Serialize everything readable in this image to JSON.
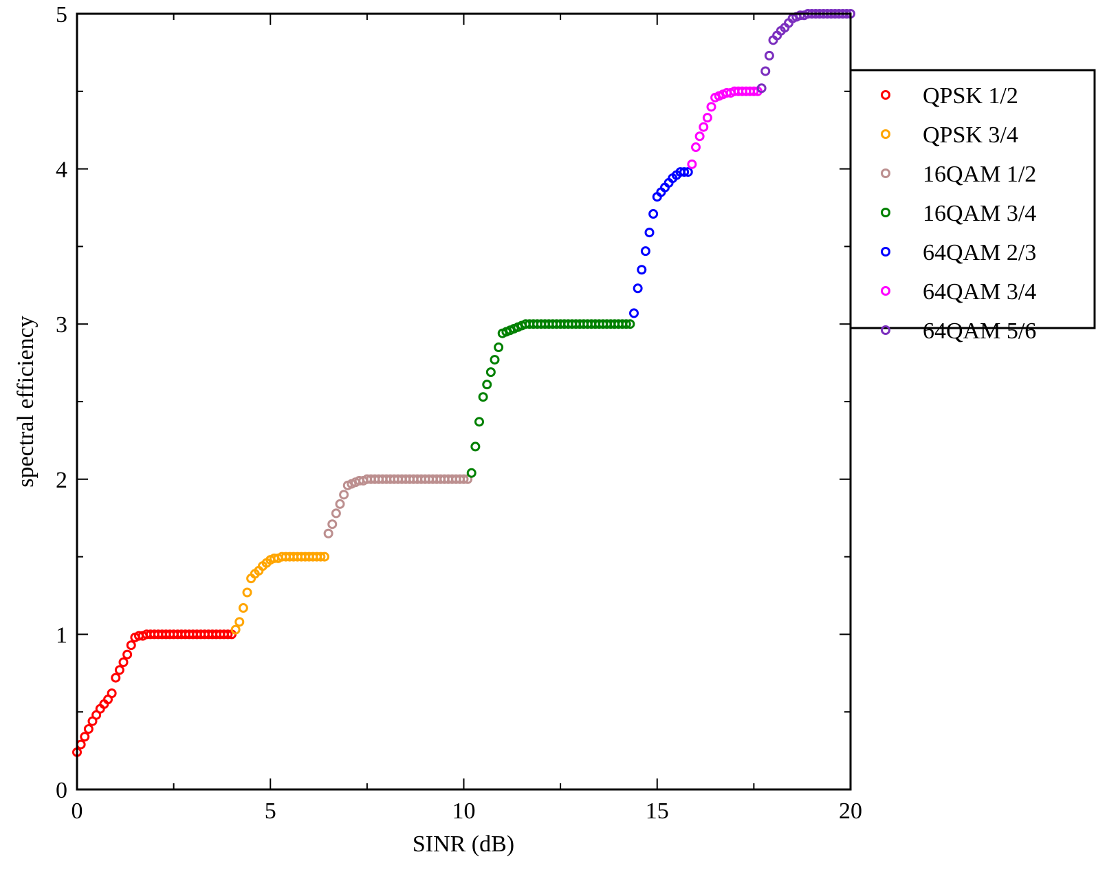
{
  "chart_data": {
    "type": "scatter",
    "title": "",
    "xlabel": "SINR (dB)",
    "ylabel": "spectral efficiency",
    "xlim": [
      0,
      20
    ],
    "ylim": [
      0,
      5
    ],
    "xticks": [
      0,
      5,
      10,
      15,
      20
    ],
    "xtick_labels": [
      "0",
      "5",
      "10",
      "15",
      "20"
    ],
    "yticks": [
      0,
      1,
      2,
      3,
      4,
      5
    ],
    "ytick_labels": [
      "0",
      "1",
      "2",
      "3",
      "4",
      "5"
    ],
    "grid": false,
    "marker": "open-circle",
    "legend": {
      "placement": "right-outside-top"
    },
    "series": [
      {
        "name": "QPSK 1/2",
        "color": "#ff0000",
        "x": [
          0,
          0.1,
          0.2,
          0.3,
          0.4,
          0.5,
          0.6,
          0.7,
          0.8,
          0.9,
          1.0,
          1.1,
          1.2,
          1.3,
          1.4,
          1.5,
          1.6,
          1.7,
          1.8,
          1.9,
          2.0,
          2.1,
          2.2,
          2.3,
          2.4,
          2.5,
          2.6,
          2.7,
          2.8,
          2.9,
          3.0,
          3.1,
          3.2,
          3.3,
          3.4,
          3.5,
          3.6,
          3.7,
          3.8,
          3.9,
          4.0
        ],
        "y": [
          0.24,
          0.29,
          0.34,
          0.39,
          0.44,
          0.48,
          0.52,
          0.55,
          0.58,
          0.62,
          0.72,
          0.77,
          0.82,
          0.87,
          0.93,
          0.98,
          0.99,
          0.99,
          1.0,
          1.0,
          1.0,
          1.0,
          1.0,
          1.0,
          1.0,
          1.0,
          1.0,
          1.0,
          1.0,
          1.0,
          1.0,
          1.0,
          1.0,
          1.0,
          1.0,
          1.0,
          1.0,
          1.0,
          1.0,
          1.0,
          1.0
        ]
      },
      {
        "name": "QPSK 3/4",
        "color": "#ffa500",
        "x": [
          4.1,
          4.2,
          4.3,
          4.4,
          4.5,
          4.6,
          4.7,
          4.8,
          4.9,
          5.0,
          5.1,
          5.2,
          5.3,
          5.4,
          5.5,
          5.6,
          5.7,
          5.8,
          5.9,
          6.0,
          6.1,
          6.2,
          6.3,
          6.4
        ],
        "y": [
          1.03,
          1.08,
          1.17,
          1.27,
          1.36,
          1.39,
          1.41,
          1.44,
          1.46,
          1.48,
          1.49,
          1.49,
          1.5,
          1.5,
          1.5,
          1.5,
          1.5,
          1.5,
          1.5,
          1.5,
          1.5,
          1.5,
          1.5,
          1.5
        ]
      },
      {
        "name": "16QAM 1/2",
        "color": "#bc8f8f",
        "x": [
          6.5,
          6.6,
          6.7,
          6.8,
          6.9,
          7.0,
          7.1,
          7.2,
          7.3,
          7.4,
          7.5,
          7.6,
          7.7,
          7.8,
          7.9,
          8.0,
          8.1,
          8.2,
          8.3,
          8.4,
          8.5,
          8.6,
          8.7,
          8.8,
          8.9,
          9.0,
          9.1,
          9.2,
          9.3,
          9.4,
          9.5,
          9.6,
          9.7,
          9.8,
          9.9,
          10.0,
          10.1
        ],
        "y": [
          1.65,
          1.71,
          1.78,
          1.84,
          1.9,
          1.96,
          1.97,
          1.98,
          1.99,
          1.99,
          2.0,
          2.0,
          2.0,
          2.0,
          2.0,
          2.0,
          2.0,
          2.0,
          2.0,
          2.0,
          2.0,
          2.0,
          2.0,
          2.0,
          2.0,
          2.0,
          2.0,
          2.0,
          2.0,
          2.0,
          2.0,
          2.0,
          2.0,
          2.0,
          2.0,
          2.0,
          2.0
        ]
      },
      {
        "name": "16QAM 3/4",
        "color": "#008000",
        "x": [
          10.2,
          10.3,
          10.4,
          10.5,
          10.6,
          10.7,
          10.8,
          10.9,
          11.0,
          11.1,
          11.2,
          11.3,
          11.4,
          11.5,
          11.6,
          11.7,
          11.8,
          11.9,
          12.0,
          12.1,
          12.2,
          12.3,
          12.4,
          12.5,
          12.6,
          12.7,
          12.8,
          12.9,
          13.0,
          13.1,
          13.2,
          13.3,
          13.4,
          13.5,
          13.6,
          13.7,
          13.8,
          13.9,
          14.0,
          14.1,
          14.2,
          14.3
        ],
        "y": [
          2.04,
          2.21,
          2.37,
          2.53,
          2.61,
          2.69,
          2.77,
          2.85,
          2.94,
          2.95,
          2.96,
          2.97,
          2.98,
          2.99,
          3.0,
          3.0,
          3.0,
          3.0,
          3.0,
          3.0,
          3.0,
          3.0,
          3.0,
          3.0,
          3.0,
          3.0,
          3.0,
          3.0,
          3.0,
          3.0,
          3.0,
          3.0,
          3.0,
          3.0,
          3.0,
          3.0,
          3.0,
          3.0,
          3.0,
          3.0,
          3.0,
          3.0
        ]
      },
      {
        "name": "64QAM 2/3",
        "color": "#0000ff",
        "x": [
          14.4,
          14.5,
          14.6,
          14.7,
          14.8,
          14.9,
          15.0,
          15.1,
          15.2,
          15.3,
          15.4,
          15.5,
          15.6,
          15.7,
          15.8
        ],
        "y": [
          3.07,
          3.23,
          3.35,
          3.47,
          3.59,
          3.71,
          3.82,
          3.85,
          3.88,
          3.91,
          3.94,
          3.96,
          3.98,
          3.98,
          3.98
        ]
      },
      {
        "name": "64QAM 3/4",
        "color": "#ff00ff",
        "x": [
          15.9,
          16.0,
          16.1,
          16.2,
          16.3,
          16.4,
          16.5,
          16.6,
          16.7,
          16.8,
          16.9,
          17.0,
          17.1,
          17.2,
          17.3,
          17.4,
          17.5,
          17.6
        ],
        "y": [
          4.03,
          4.14,
          4.21,
          4.27,
          4.33,
          4.4,
          4.46,
          4.47,
          4.48,
          4.49,
          4.49,
          4.5,
          4.5,
          4.5,
          4.5,
          4.5,
          4.5,
          4.5
        ]
      },
      {
        "name": "64QAM 5/6",
        "color": "#7b2fbe",
        "x": [
          17.7,
          17.8,
          17.9,
          18.0,
          18.1,
          18.2,
          18.3,
          18.4,
          18.5,
          18.6,
          18.7,
          18.8,
          18.9,
          19.0,
          19.1,
          19.2,
          19.3,
          19.4,
          19.5,
          19.6,
          19.7,
          19.8,
          19.9,
          20.0
        ],
        "y": [
          4.52,
          4.63,
          4.73,
          4.83,
          4.86,
          4.89,
          4.91,
          4.94,
          4.97,
          4.98,
          4.99,
          4.99,
          5.0,
          5.0,
          5.0,
          5.0,
          5.0,
          5.0,
          5.0,
          5.0,
          5.0,
          5.0,
          5.0,
          5.0
        ]
      }
    ]
  }
}
